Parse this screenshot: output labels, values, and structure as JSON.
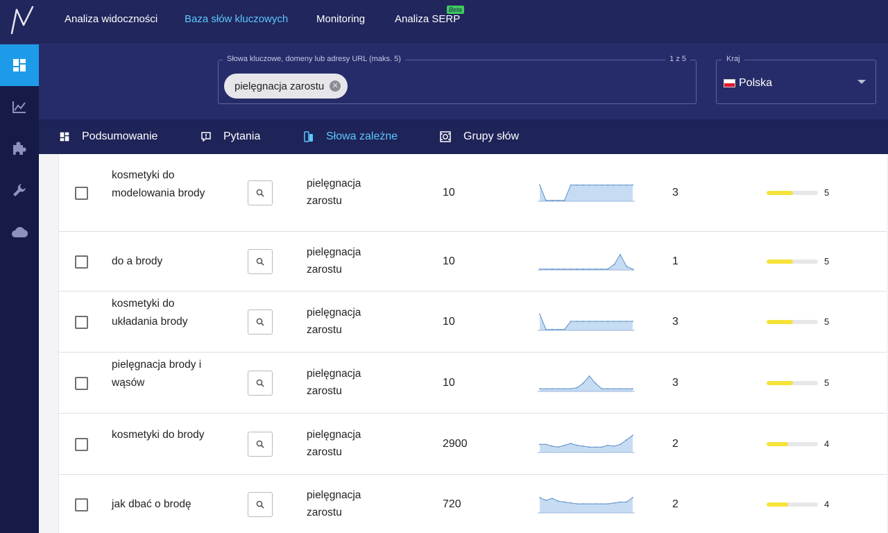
{
  "nav": {
    "items": [
      {
        "label": "Analiza widoczności",
        "active": false
      },
      {
        "label": "Baza słów kluczowych",
        "active": true
      },
      {
        "label": "Monitoring",
        "active": false
      },
      {
        "label": "Analiza SERP",
        "active": false
      }
    ],
    "beta_badge": "Beta",
    "logo_icon": "logo-icon"
  },
  "sidebar": {
    "items": [
      {
        "icon": "dashboard-icon",
        "active": true
      },
      {
        "icon": "chart-icon",
        "active": false
      },
      {
        "icon": "puzzle-icon",
        "active": false
      },
      {
        "icon": "wrench-icon",
        "active": false
      },
      {
        "icon": "cloud-icon",
        "active": false
      }
    ]
  },
  "search": {
    "legend": "Słowa kluczowe, domeny lub adresy URL (maks. 5)",
    "counter": "1 z 5",
    "chip": "pielęgnacja zarostu"
  },
  "country": {
    "legend": "Kraj",
    "value": "Polska"
  },
  "tabs": [
    {
      "label": "Podsumowanie",
      "icon": "dashboard-icon",
      "active": false
    },
    {
      "label": "Pytania",
      "icon": "question-icon",
      "active": false
    },
    {
      "label": "Słowa zależne",
      "icon": "related-icon",
      "active": true
    },
    {
      "label": "Grupy słów",
      "icon": "groups-icon",
      "active": false
    }
  ],
  "rows": [
    {
      "keyword": "kosmetyki do modelowania brody",
      "seed": "pielęgnacja zarostu",
      "volume": "10",
      "competition": "3",
      "difficulty": "5",
      "difficulty_fraction": 0.52,
      "trend": [
        0.9,
        0.05,
        0.05,
        0.05,
        0.05,
        0.9,
        0.9,
        0.9,
        0.9,
        0.9,
        0.9,
        0.9,
        0.9,
        0.9,
        0.9,
        0.9
      ]
    },
    {
      "keyword": "do a brody",
      "seed": "pielęgnacja zarostu",
      "volume": "10",
      "competition": "1",
      "difficulty": "5",
      "difficulty_fraction": 0.52,
      "trend": [
        0.05,
        0.05,
        0.05,
        0.05,
        0.05,
        0.05,
        0.05,
        0.05,
        0.05,
        0.05,
        0.05,
        0.05,
        0.3,
        0.85,
        0.2,
        0.05
      ]
    },
    {
      "keyword": "kosmetyki do układania brody",
      "seed": "pielęgnacja zarostu",
      "volume": "10",
      "competition": "3",
      "difficulty": "5",
      "difficulty_fraction": 0.52,
      "trend": [
        0.9,
        0.05,
        0.05,
        0.05,
        0.05,
        0.5,
        0.5,
        0.5,
        0.5,
        0.5,
        0.5,
        0.5,
        0.5,
        0.5,
        0.5,
        0.5
      ]
    },
    {
      "keyword": "pielęgnacja brody i wąsów",
      "seed": "pielęgnacja zarostu",
      "volume": "10",
      "competition": "3",
      "difficulty": "5",
      "difficulty_fraction": 0.52,
      "trend": [
        0.15,
        0.15,
        0.15,
        0.15,
        0.15,
        0.15,
        0.2,
        0.45,
        0.85,
        0.45,
        0.15,
        0.15,
        0.15,
        0.15,
        0.15,
        0.15
      ]
    },
    {
      "keyword": "kosmetyki do brody",
      "seed": "pielęgnacja zarostu",
      "volume": "2900",
      "competition": "2",
      "difficulty": "4",
      "difficulty_fraction": 0.42,
      "trend": [
        0.45,
        0.45,
        0.35,
        0.3,
        0.4,
        0.5,
        0.4,
        0.35,
        0.3,
        0.3,
        0.3,
        0.4,
        0.35,
        0.45,
        0.7,
        0.95
      ]
    },
    {
      "keyword": "jak dbać o brodę",
      "seed": "pielęgnacja zarostu",
      "volume": "720",
      "competition": "2",
      "difficulty": "4",
      "difficulty_fraction": 0.42,
      "trend": [
        0.85,
        0.7,
        0.8,
        0.65,
        0.6,
        0.55,
        0.5,
        0.5,
        0.5,
        0.5,
        0.5,
        0.5,
        0.55,
        0.6,
        0.6,
        0.85
      ]
    }
  ]
}
